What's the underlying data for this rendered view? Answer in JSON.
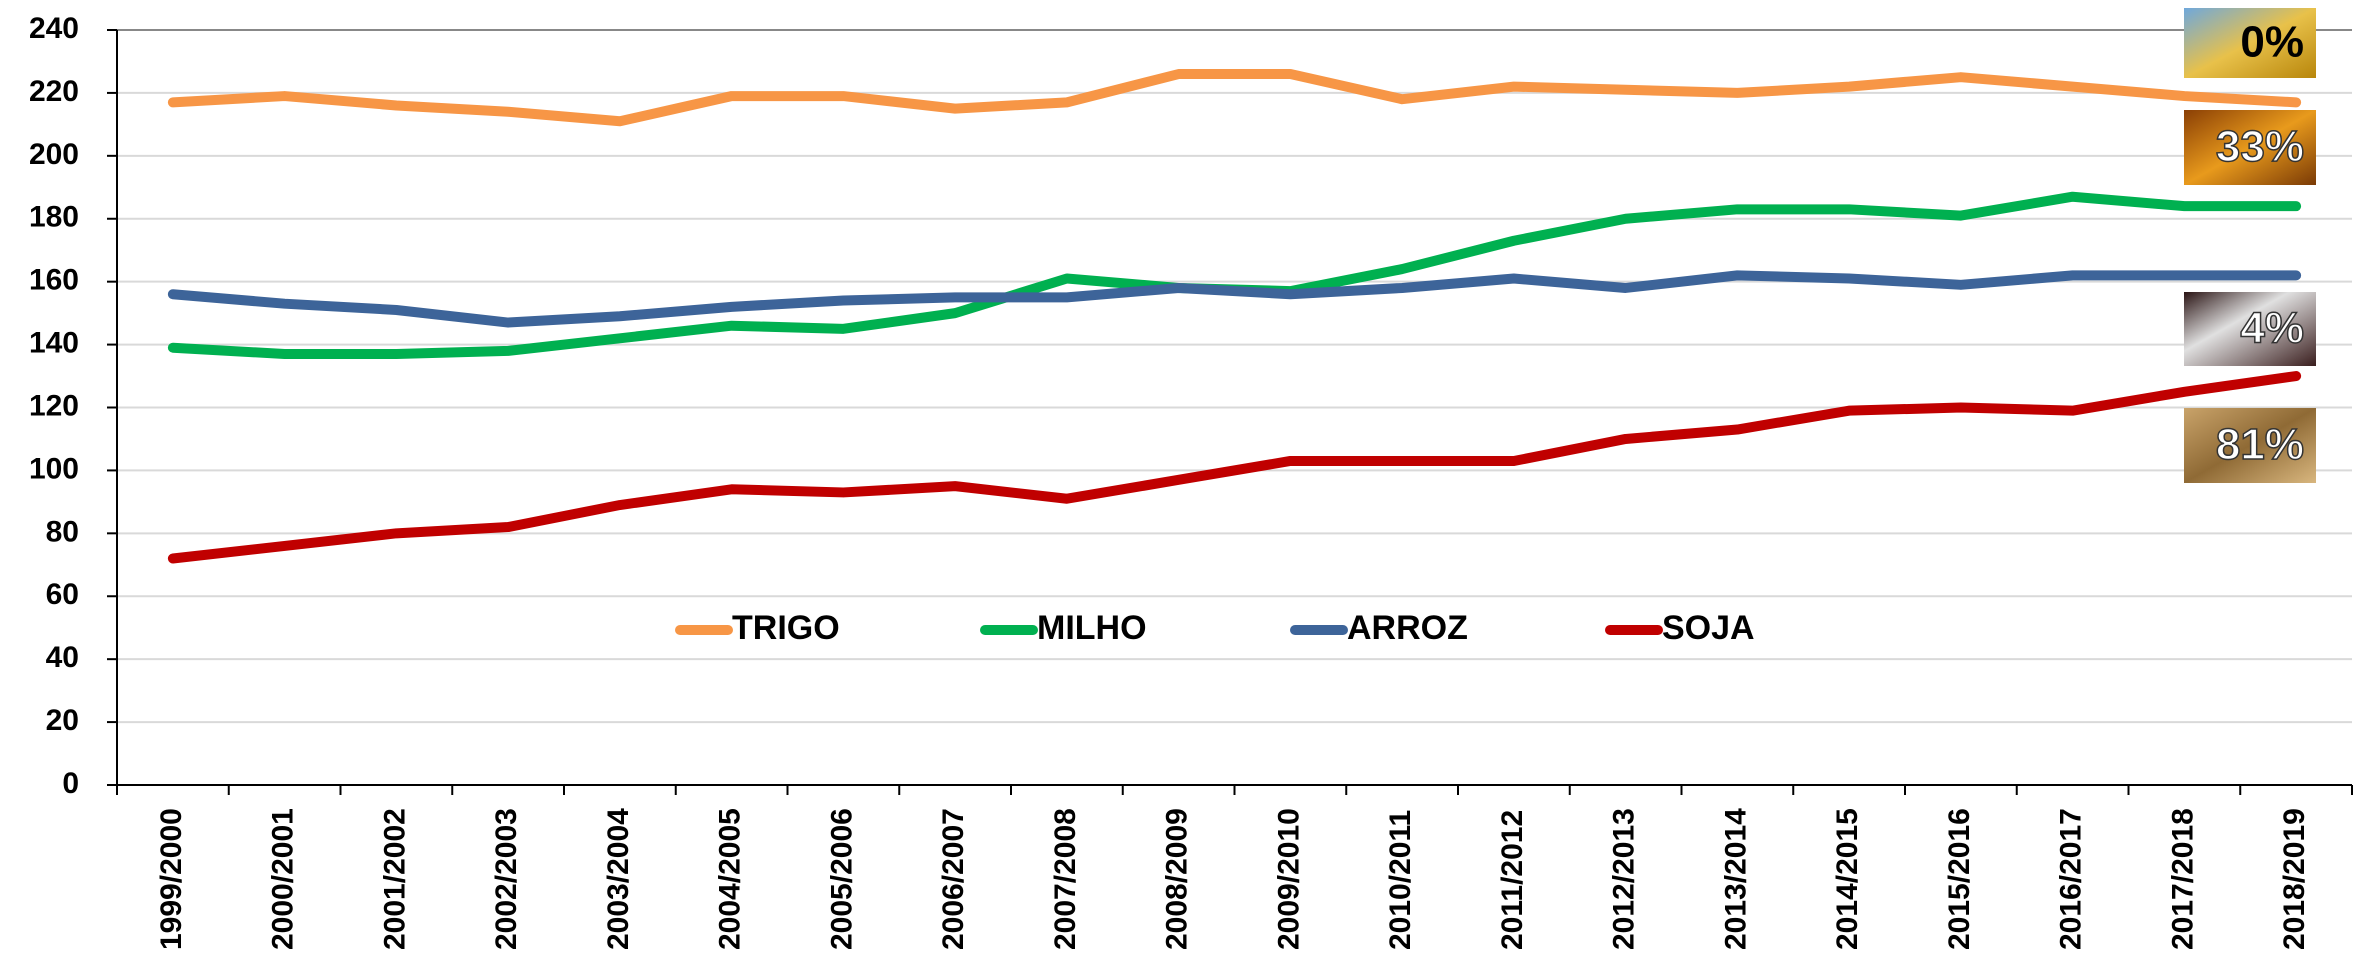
{
  "chart_data": {
    "type": "line",
    "categories": [
      "1999/2000",
      "2000/2001",
      "2001/2002",
      "2002/2003",
      "2003/2004",
      "2004/2005",
      "2005/2006",
      "2006/2007",
      "2007/2008",
      "2008/2009",
      "2009/2010",
      "2010/2011",
      "2011/2012",
      "2012/2013",
      "2013/2014",
      "2014/2015",
      "2015/2016",
      "2016/2017",
      "2017/2018",
      "2018/2019"
    ],
    "series": [
      {
        "name": "TRIGO",
        "color": "#f79646",
        "values": [
          217,
          219,
          216,
          214,
          211,
          219,
          219,
          215,
          217,
          226,
          226,
          218,
          222,
          221,
          220,
          222,
          225,
          222,
          219,
          217
        ]
      },
      {
        "name": "MILHO",
        "color": "#00b050",
        "values": [
          139,
          137,
          137,
          138,
          142,
          146,
          145,
          150,
          161,
          158,
          157,
          164,
          173,
          180,
          183,
          183,
          181,
          187,
          184,
          184
        ]
      },
      {
        "name": "ARROZ",
        "color": "#3d6499",
        "values": [
          156,
          153,
          151,
          147,
          149,
          152,
          154,
          155,
          155,
          158,
          156,
          158,
          161,
          158,
          162,
          161,
          159,
          162,
          162,
          162
        ]
      },
      {
        "name": "SOJA",
        "color": "#c00000",
        "values": [
          72,
          76,
          80,
          82,
          89,
          94,
          93,
          95,
          91,
          97,
          103,
          103,
          103,
          110,
          113,
          119,
          120,
          119,
          125,
          130
        ]
      }
    ],
    "ylim": [
      0,
      240
    ],
    "yticks": [
      0,
      20,
      40,
      60,
      80,
      100,
      120,
      140,
      160,
      180,
      200,
      220,
      240
    ],
    "grid": true,
    "annotations": [
      "0%",
      "33%",
      "4%",
      "81%"
    ]
  }
}
